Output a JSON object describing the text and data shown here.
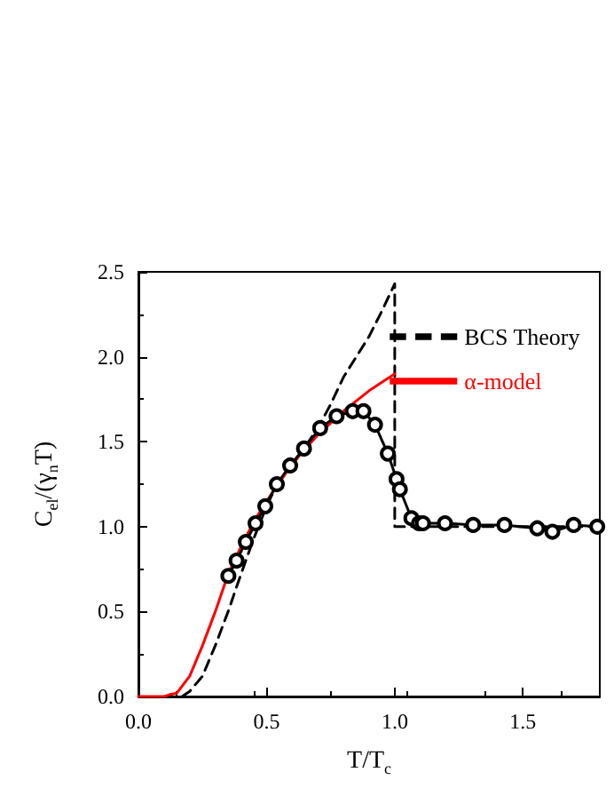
{
  "chart_data": {
    "type": "line",
    "xlabel": "T/T$_{c}$",
    "ylabel": "C$_{el}$/(γ$_{n}$T)",
    "xlim": [
      0,
      1.8
    ],
    "ylim": [
      0,
      2.5
    ],
    "xticks": [
      {
        "value": 0,
        "label": "0.0"
      },
      {
        "value": 0.5,
        "label": "0.5"
      },
      {
        "value": 1,
        "label": "1.0"
      },
      {
        "value": 1.5,
        "label": "1.5"
      }
    ],
    "yticks": [
      {
        "value": 0,
        "label": "0.0"
      },
      {
        "value": 0.5,
        "label": "0.5"
      },
      {
        "value": 1,
        "label": "1.0"
      },
      {
        "value": 1.5,
        "label": "1.5"
      },
      {
        "value": 2,
        "label": "2.0"
      },
      {
        "value": 2.5,
        "label": "2.5"
      }
    ],
    "grid": false,
    "legend": "top right",
    "series": [
      {
        "name": "BCS Theory",
        "color": "#000000",
        "line_style": "dashed",
        "marker": "none",
        "x": [
          0.17,
          0.2,
          0.25,
          0.3,
          0.35,
          0.4,
          0.45,
          0.5,
          0.55,
          0.6,
          0.65,
          0.7,
          0.75,
          0.8,
          0.85,
          0.9,
          0.95,
          1.0,
          1.0,
          1.8
        ],
        "values": [
          0,
          0.03,
          0.12,
          0.3,
          0.5,
          0.72,
          0.93,
          1.12,
          1.28,
          1.36,
          1.47,
          1.58,
          1.72,
          1.88,
          2.0,
          2.12,
          2.27,
          2.43,
          1.0,
          1.0
        ]
      },
      {
        "name": "α-model",
        "color": "#ff0000",
        "line_style": "solid",
        "marker": "none",
        "x": [
          0,
          0.1,
          0.12,
          0.15,
          0.2,
          0.25,
          0.3,
          0.35,
          0.4,
          0.45,
          0.5,
          0.6,
          0.7,
          0.8,
          0.9,
          1.0
        ],
        "values": [
          0,
          0,
          0.01,
          0.02,
          0.12,
          0.3,
          0.5,
          0.72,
          0.88,
          1.03,
          1.15,
          1.37,
          1.54,
          1.68,
          1.8,
          1.9
        ]
      },
      {
        "color": "#000000",
        "line_style": "solid",
        "marker": "circle",
        "x": [
          0.351,
          0.383,
          0.419,
          0.457,
          0.495,
          0.54,
          0.592,
          0.646,
          0.709,
          0.773,
          0.836,
          0.878,
          0.923,
          0.973,
          1.007,
          1.02,
          1.065,
          1.095,
          1.11,
          1.196,
          1.306,
          1.428,
          1.556,
          1.615,
          1.698,
          1.79
        ],
        "values": [
          0.71,
          0.8,
          0.91,
          1.02,
          1.12,
          1.25,
          1.36,
          1.46,
          1.58,
          1.65,
          1.68,
          1.68,
          1.6,
          1.43,
          1.28,
          1.22,
          1.05,
          1.02,
          1.02,
          1.02,
          1.01,
          1.01,
          0.99,
          0.97,
          1.01,
          1.0
        ]
      }
    ]
  }
}
